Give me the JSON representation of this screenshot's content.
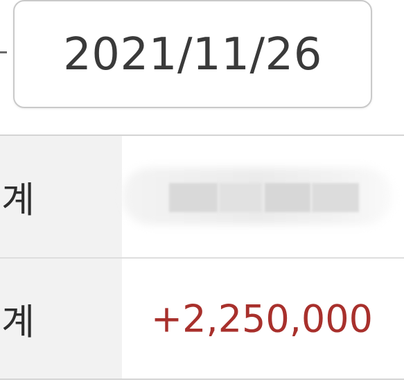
{
  "date_filter": {
    "end_date": "2021/11/26"
  },
  "summary": {
    "rows": [
      {
        "label": "계",
        "value": ""
      },
      {
        "label": "계",
        "value": "+2,250,000"
      }
    ]
  },
  "colors": {
    "positive_amount": "#a8302c",
    "header_cell_bg": "#f2f2f2"
  }
}
